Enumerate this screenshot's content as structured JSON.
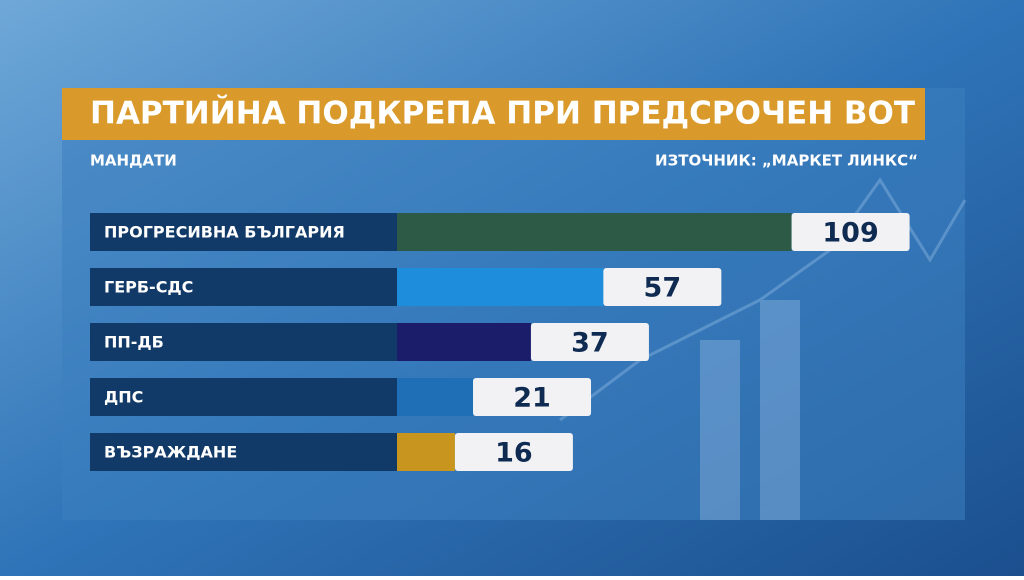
{
  "chart_data": {
    "type": "bar",
    "orientation": "horizontal",
    "title": "ПАРТИЙНА ПОДКРЕПА ПРИ ПРЕДСРОЧЕН ВОТ",
    "subtitle": "МАНДАТИ",
    "source": "ИЗТОЧНИК: „МАРКЕТ ЛИНКС“",
    "categories": [
      "ПРОГРЕСИВНА БЪЛГАРИЯ",
      "ГЕРБ-СДС",
      "ПП-ДБ",
      "ДПС",
      "ВЪЗРАЖДАНЕ"
    ],
    "values": [
      109,
      57,
      37,
      21,
      16
    ],
    "colors": [
      "#2d5a47",
      "#1e8edc",
      "#1b1d6b",
      "#1f6fb6",
      "#c8951f"
    ]
  }
}
